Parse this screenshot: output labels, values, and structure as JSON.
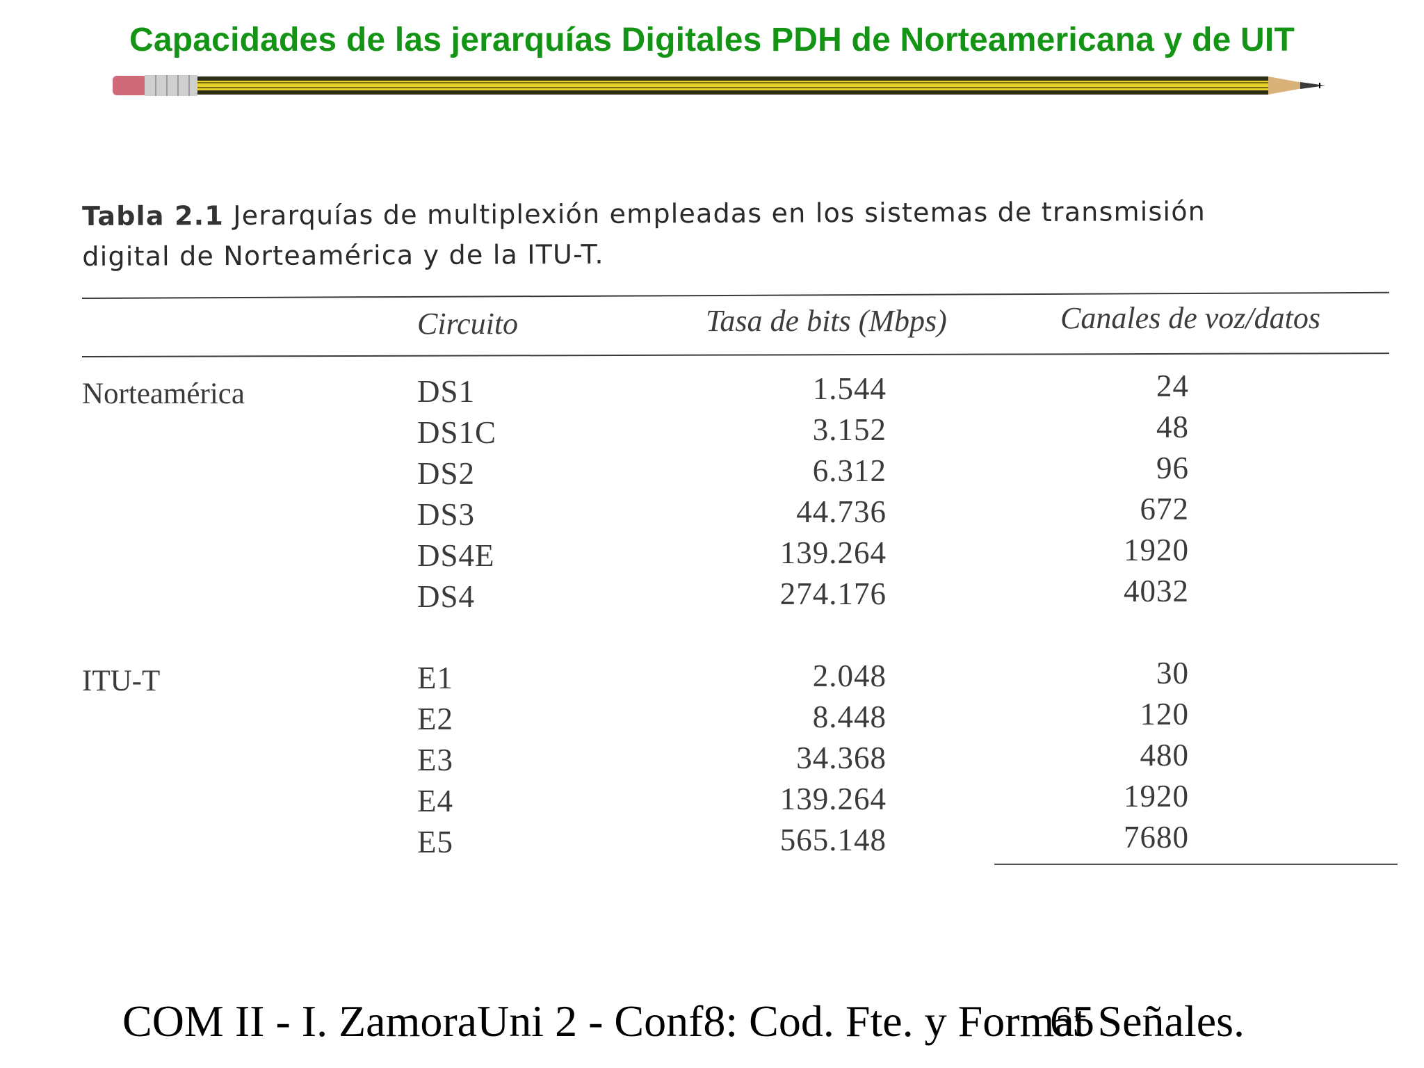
{
  "slide": {
    "title": "Capacidades de las jerarquías Digitales PDH de Norteamericana y de UIT",
    "title_color": "#149414"
  },
  "decoration": {
    "divider": "pencil-icon",
    "pencil_body_color": "#e8d02a",
    "eraser_color": "#d06a7a"
  },
  "table": {
    "caption_label": "Tabla 2.1",
    "caption_text": " Jerarquías de multiplexión empleadas en los sistemas de transmisión",
    "caption_text_line2": "digital de Norteamérica y de la ITU-T.",
    "headers": {
      "circuit": "Circuito",
      "rate": "Tasa de bits (Mbps)",
      "channels": "Canales de voz/datos"
    },
    "groups": [
      {
        "region": "Norteamérica",
        "rows": [
          {
            "circuit": "DS1",
            "rate": "1.544",
            "channels": "24"
          },
          {
            "circuit": "DS1C",
            "rate": "3.152",
            "channels": "48"
          },
          {
            "circuit": "DS2",
            "rate": "6.312",
            "channels": "96"
          },
          {
            "circuit": "DS3",
            "rate": "44.736",
            "channels": "672"
          },
          {
            "circuit": "DS4E",
            "rate": "139.264",
            "channels": "1920"
          },
          {
            "circuit": "DS4",
            "rate": "274.176",
            "channels": "4032"
          }
        ]
      },
      {
        "region": "ITU-T",
        "rows": [
          {
            "circuit": "E1",
            "rate": "2.048",
            "channels": "30"
          },
          {
            "circuit": "E2",
            "rate": "8.448",
            "channels": "120"
          },
          {
            "circuit": "E3",
            "rate": "34.368",
            "channels": "480"
          },
          {
            "circuit": "E4",
            "rate": "139.264",
            "channels": "1920"
          },
          {
            "circuit": "E5",
            "rate": "565.148",
            "channels": "7680"
          }
        ]
      }
    ]
  },
  "footer": {
    "left": "COM II - I. ZamoraUni 2 - Conf8: Cod. Fte. y Format Señales.",
    "page_number": "65"
  }
}
